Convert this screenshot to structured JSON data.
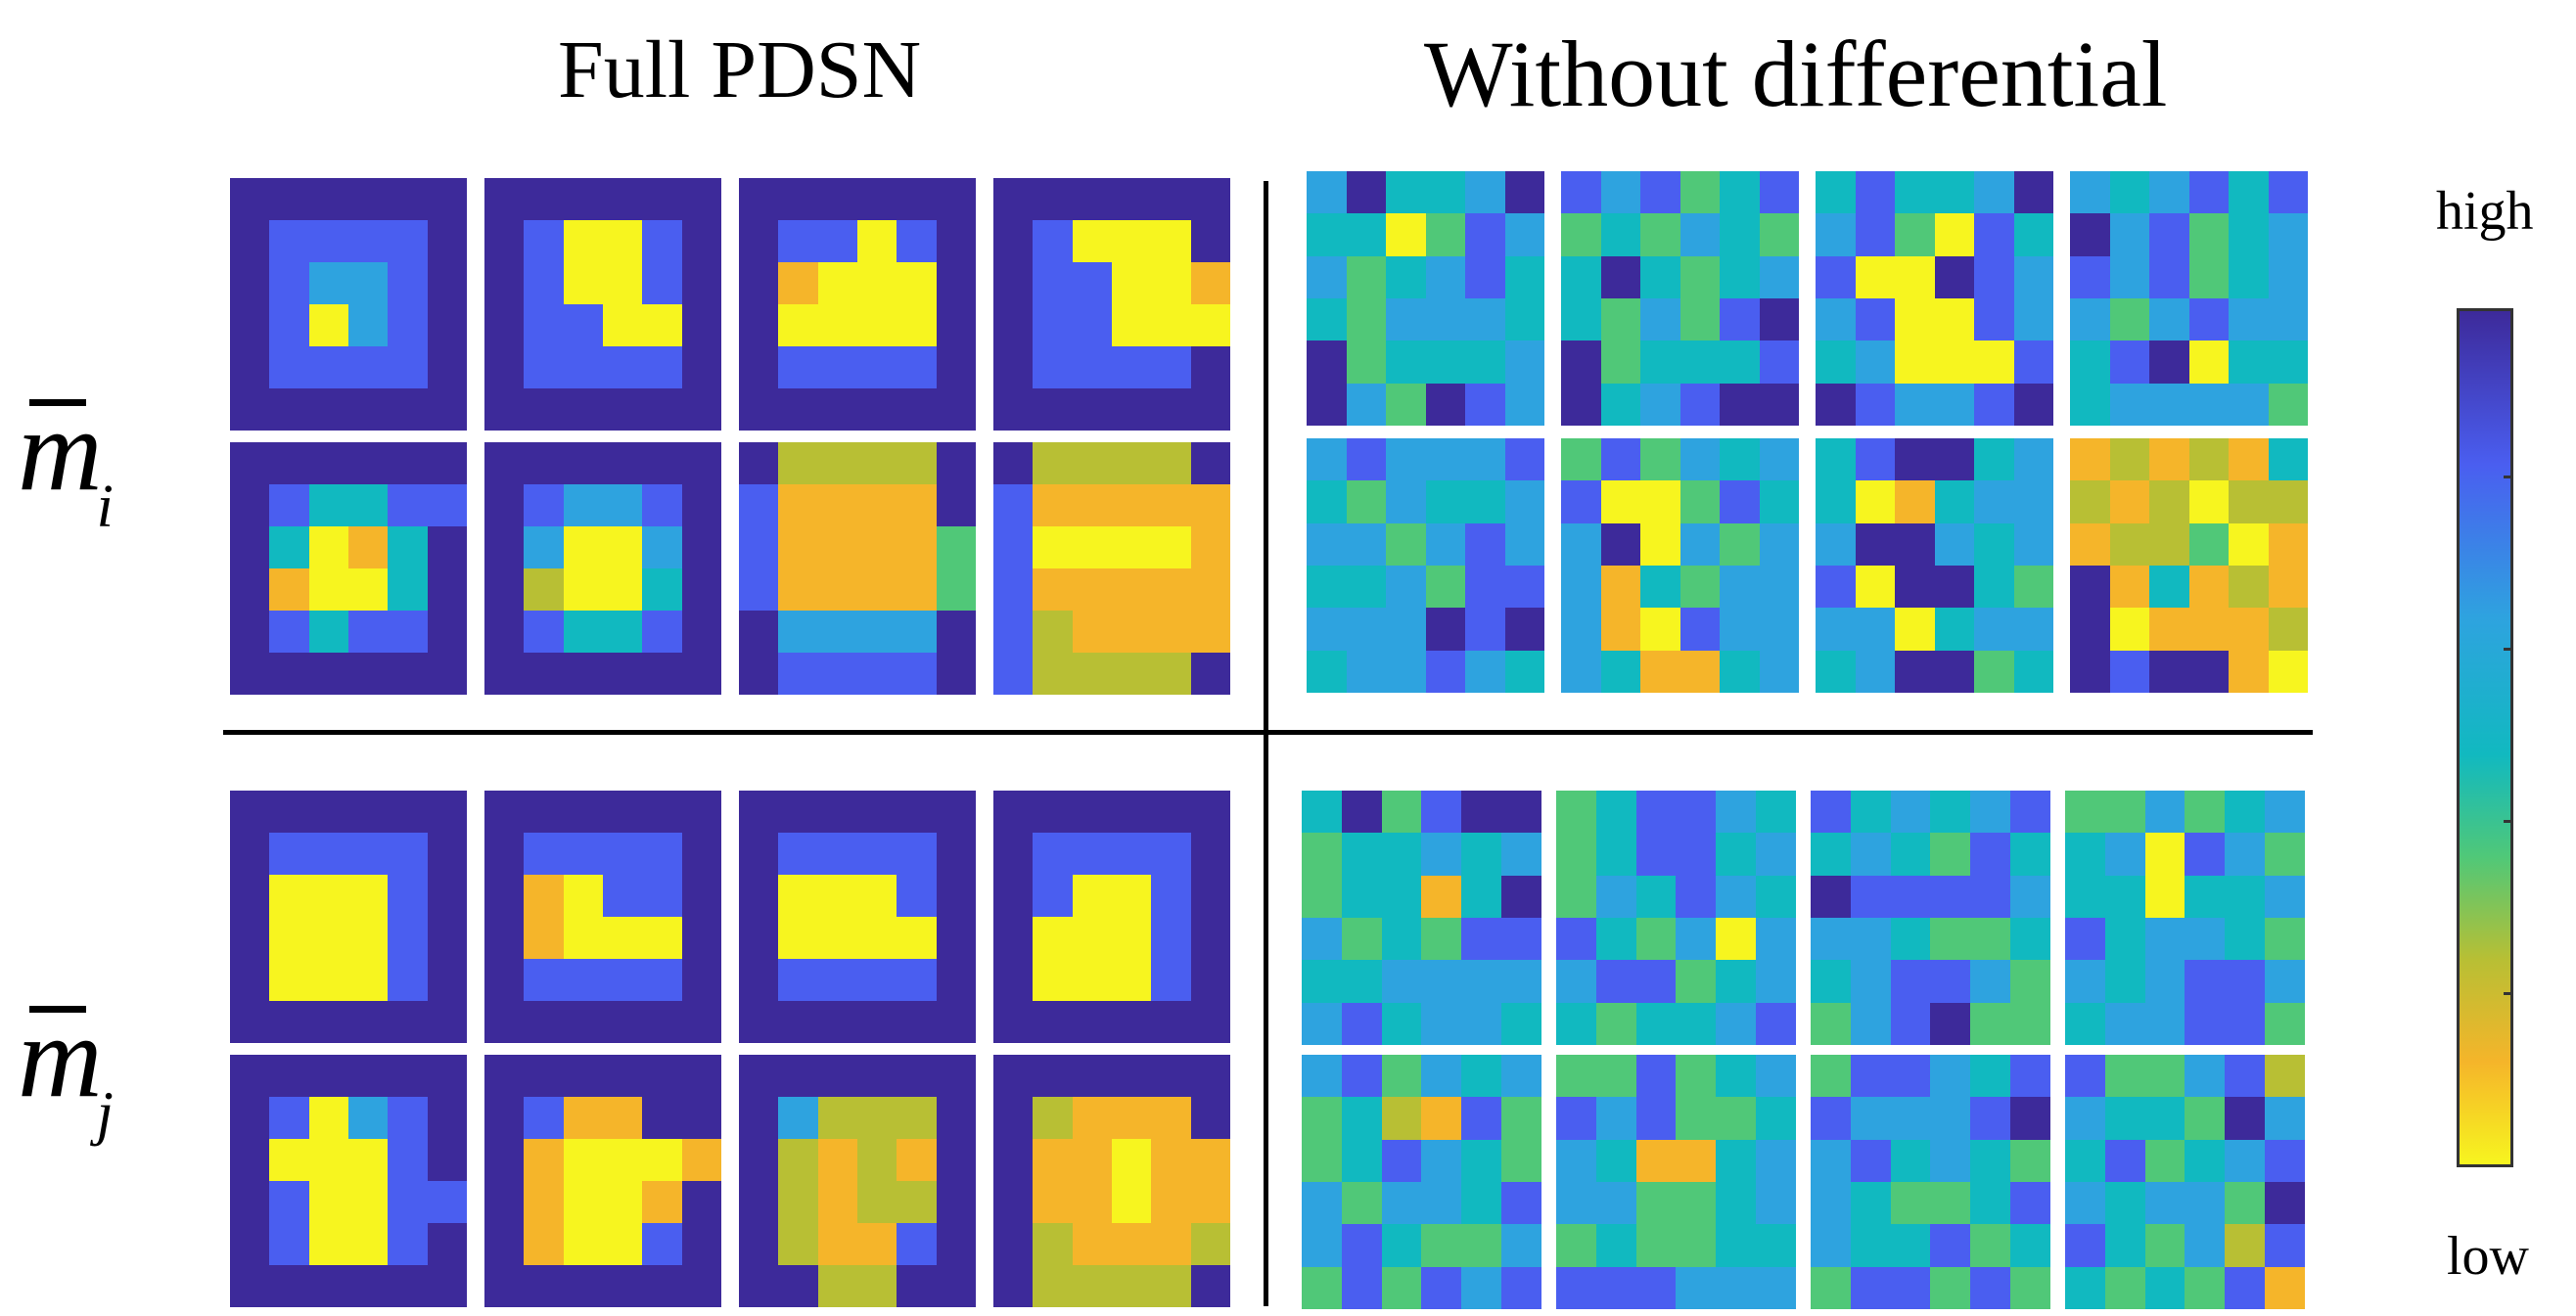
{
  "titles": {
    "left": "Full PDSN",
    "right": "Without differential"
  },
  "row_labels": {
    "top": {
      "symbol": "m",
      "subscript": "i"
    },
    "bottom": {
      "symbol": "m",
      "subscript": "j"
    }
  },
  "colorbar": {
    "high_label": "high",
    "low_label": "low"
  },
  "colormap": [
    "#f7f51f",
    "#f5b52a",
    "#b8bf34",
    "#50c878",
    "#11b9c0",
    "#2ea3df",
    "#4a5ef0",
    "#3d2a9a"
  ],
  "panels": {
    "full_pdsn_mi": [
      [
        "777777",
        "766667",
        "765567",
        "760567",
        "766667",
        "777777"
      ],
      [
        "777777",
        "760067",
        "760067",
        "766007",
        "766667",
        "777777"
      ],
      [
        "777777",
        "766067",
        "710007",
        "700007",
        "766667",
        "777777"
      ],
      [
        "777777",
        "760007",
        "766001",
        "766000",
        "766667",
        "777777"
      ],
      [
        "777777",
        "764466",
        "740147",
        "710047",
        "764667",
        "777777"
      ],
      [
        "777777",
        "765567",
        "750057",
        "720047",
        "764467",
        "777777"
      ],
      [
        "722227",
        "611117",
        "611113",
        "611113",
        "755557",
        "766667"
      ],
      [
        "722227",
        "611111",
        "600001",
        "611111",
        "621111",
        "622227"
      ]
    ],
    "full_pdsn_mj": [
      [
        "777777",
        "766667",
        "700067",
        "700067",
        "700067",
        "777777"
      ],
      [
        "777777",
        "766667",
        "710667",
        "710007",
        "766667",
        "777777"
      ],
      [
        "777777",
        "766667",
        "700067",
        "700007",
        "766667",
        "777777"
      ],
      [
        "777777",
        "766667",
        "760067",
        "700067",
        "700067",
        "777777"
      ],
      [
        "777777",
        "760567",
        "700067",
        "760066",
        "760067",
        "777777"
      ],
      [
        "777777",
        "761177",
        "710001",
        "710017",
        "710067",
        "777777"
      ],
      [
        "777777",
        "752227",
        "721217",
        "721227",
        "721167",
        "772277"
      ],
      [
        "777777",
        "721117",
        "711011",
        "711011",
        "721112",
        "722227"
      ]
    ],
    "without_diff_mi": [
      [
        "574457",
        "440365",
        "534564",
        "435554",
        "734445",
        "753765"
      ],
      [
        "656346",
        "343543",
        "474345",
        "435367",
        "734446",
        "745677"
      ],
      [
        "464457",
        "563064",
        "600765",
        "560065",
        "450006",
        "765567"
      ],
      [
        "545646",
        "756345",
        "656345",
        "535655",
        "467044",
        "455553"
      ],
      [
        "565556",
        "435445",
        "553565",
        "445366",
        "555767",
        "455654"
      ],
      [
        "363545",
        "600364",
        "570535",
        "514355",
        "510655",
        "541145"
      ],
      [
        "467745",
        "401455",
        "577545",
        "607743",
        "550455",
        "457734"
      ],
      [
        "121214",
        "212022",
        "122301",
        "714121",
        "701112",
        "767710"
      ]
    ],
    "without_diff_mj": [
      [
        "473677",
        "344545",
        "344147",
        "534366",
        "445555",
        "564554"
      ],
      [
        "346654",
        "346645",
        "354654",
        "643505",
        "566345",
        "434456"
      ],
      [
        "645456",
        "454364",
        "766665",
        "554334",
        "456653",
        "356733"
      ],
      [
        "335345",
        "450653",
        "440445",
        "645543",
        "545665",
        "455663"
      ],
      [
        "563545",
        "342163",
        "346543",
        "535546",
        "564335",
        "363656"
      ],
      [
        "336345",
        "656334",
        "541145",
        "553345",
        "343344",
        "666555"
      ],
      [
        "366546",
        "655567",
        "564543",
        "543346",
        "544634",
        "366363"
      ],
      [
        "633562",
        "544375",
        "463456",
        "545537",
        "643526",
        "434361"
      ]
    ]
  }
}
